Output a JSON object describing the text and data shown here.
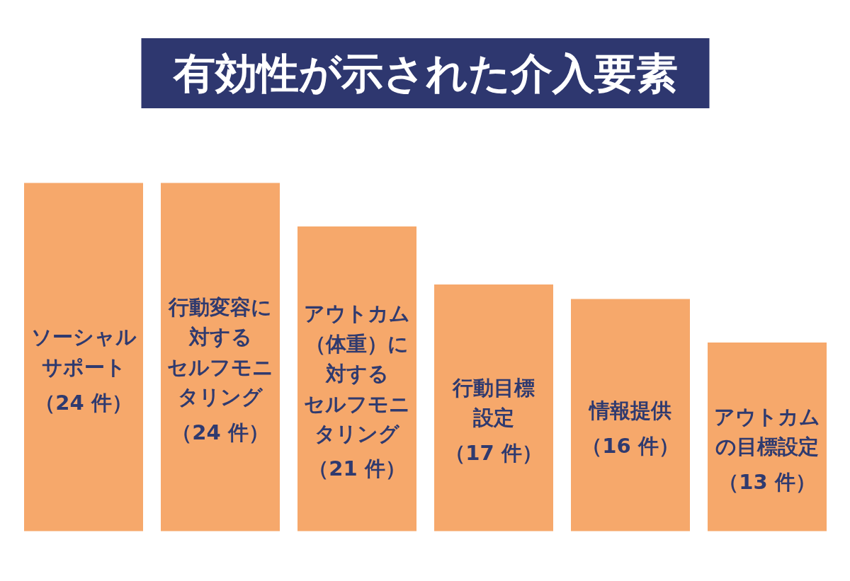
{
  "chart_data": {
    "type": "bar",
    "title": "有効性が示された介入要素",
    "categories": [
      "ソーシャルサポート",
      "行動変容に対するセルフモニタリング",
      "アウトカム（体重）に対するセルフモニタリング",
      "行動目標設定",
      "情報提供",
      "アウトカムの目標設定"
    ],
    "values": [
      24,
      24,
      21,
      17,
      16,
      13
    ],
    "value_labels": [
      "（24 件）",
      "（24 件）",
      "（21 件）",
      "（17 件）",
      "（16 件）",
      "（13 件）"
    ],
    "color": "#f6a86b",
    "tick_labels": false
  }
}
